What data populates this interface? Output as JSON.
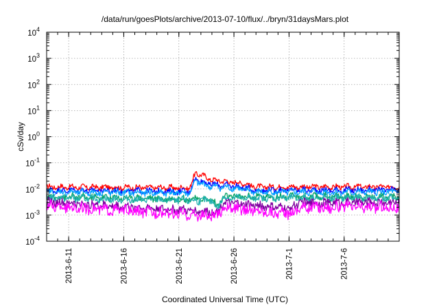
{
  "chart_data": {
    "type": "line",
    "title": "/data/run/goesPlots/archive/2013-07-10/flux/../bryn/31daysMars.plot",
    "xlabel": "Coordinated Universal Time (UTC)",
    "ylabel": "cSv/day",
    "y_scale": "log",
    "ylim": [
      0.0001,
      10000
    ],
    "xlim": [
      "2013-06-09",
      "2013-07-11"
    ],
    "grid": true,
    "y_ticks": [
      {
        "value": 0.0001,
        "base": "10",
        "exp": "-4"
      },
      {
        "value": 0.001,
        "base": "10",
        "exp": "-3"
      },
      {
        "value": 0.01,
        "base": "10",
        "exp": "-2"
      },
      {
        "value": 0.1,
        "base": "10",
        "exp": "-1"
      },
      {
        "value": 1,
        "base": "10",
        "exp": "0"
      },
      {
        "value": 10,
        "base": "10",
        "exp": "1"
      },
      {
        "value": 100,
        "base": "10",
        "exp": "2"
      },
      {
        "value": 1000,
        "base": "10",
        "exp": "3"
      },
      {
        "value": 10000,
        "base": "10",
        "exp": "4"
      }
    ],
    "x_ticks": [
      "2013-6-11",
      "2013-6-16",
      "2013-6-21",
      "2013-6-26",
      "2013-7-1",
      "2013-7-6"
    ],
    "series": [
      {
        "color": "#ff0000",
        "base": 0.0125,
        "noise": 0.18,
        "anchors": [
          [
            "2013-06-09",
            0.012
          ],
          [
            "2013-06-22",
            0.011
          ],
          [
            "2013-06-22T12:00",
            0.04
          ],
          [
            "2013-06-23",
            0.035
          ],
          [
            "2013-06-24",
            0.022
          ],
          [
            "2013-06-25",
            0.02
          ],
          [
            "2013-06-26",
            0.018
          ],
          [
            "2013-06-27",
            0.016
          ],
          [
            "2013-06-28",
            0.012
          ],
          [
            "2013-07-11",
            0.012
          ]
        ]
      },
      {
        "color": "#0000ff",
        "base": 0.0095,
        "noise": 0.2,
        "anchors": [
          [
            "2013-06-09",
            0.009
          ],
          [
            "2013-06-22",
            0.008
          ],
          [
            "2013-06-22T12:00",
            0.025
          ],
          [
            "2013-06-23",
            0.02
          ],
          [
            "2013-06-24",
            0.015
          ],
          [
            "2013-06-26",
            0.013
          ],
          [
            "2013-06-28",
            0.009
          ],
          [
            "2013-07-11",
            0.009
          ]
        ]
      },
      {
        "color": "#00a0ff",
        "base": 0.0075,
        "noise": 0.22,
        "anchors": [
          [
            "2013-06-09",
            0.0075
          ],
          [
            "2013-06-22",
            0.007
          ],
          [
            "2013-06-22T12:00",
            0.02
          ],
          [
            "2013-06-23",
            0.016
          ],
          [
            "2013-06-24",
            0.012
          ],
          [
            "2013-06-26",
            0.011
          ],
          [
            "2013-06-28",
            0.0075
          ],
          [
            "2013-07-11",
            0.0075
          ]
        ]
      },
      {
        "color": "#00a060",
        "base": 0.0052,
        "noise": 0.25,
        "anchors": [
          [
            "2013-06-09",
            0.005
          ],
          [
            "2013-06-24",
            0.004
          ],
          [
            "2013-06-24T12:00",
            0.002
          ],
          [
            "2013-06-25",
            0.005
          ],
          [
            "2013-07-11",
            0.005
          ]
        ]
      },
      {
        "color": "#20b0b0",
        "base": 0.0045,
        "noise": 0.25,
        "anchors": [
          [
            "2013-06-09",
            0.0045
          ],
          [
            "2013-06-24",
            0.0035
          ],
          [
            "2013-06-24T12:00",
            0.0018
          ],
          [
            "2013-06-25",
            0.0045
          ],
          [
            "2013-07-11",
            0.0045
          ]
        ]
      },
      {
        "color": "#8000a0",
        "base": 0.0032,
        "noise": 0.3,
        "anchors": [
          [
            "2013-06-09",
            0.0032
          ],
          [
            "2013-06-24T12:00",
            0.0013
          ],
          [
            "2013-06-25",
            0.003
          ],
          [
            "2013-07-01",
            0.0018
          ],
          [
            "2013-07-02",
            0.003
          ],
          [
            "2013-07-11",
            0.003
          ]
        ]
      },
      {
        "color": "#ff00ff",
        "base": 0.0022,
        "noise": 0.4,
        "anchors": [
          [
            "2013-06-09",
            0.0022
          ],
          [
            "2013-06-24T12:00",
            0.0009
          ],
          [
            "2013-06-25",
            0.002
          ],
          [
            "2013-07-01",
            0.0011
          ],
          [
            "2013-07-02",
            0.002
          ],
          [
            "2013-07-11",
            0.002
          ]
        ]
      }
    ]
  }
}
